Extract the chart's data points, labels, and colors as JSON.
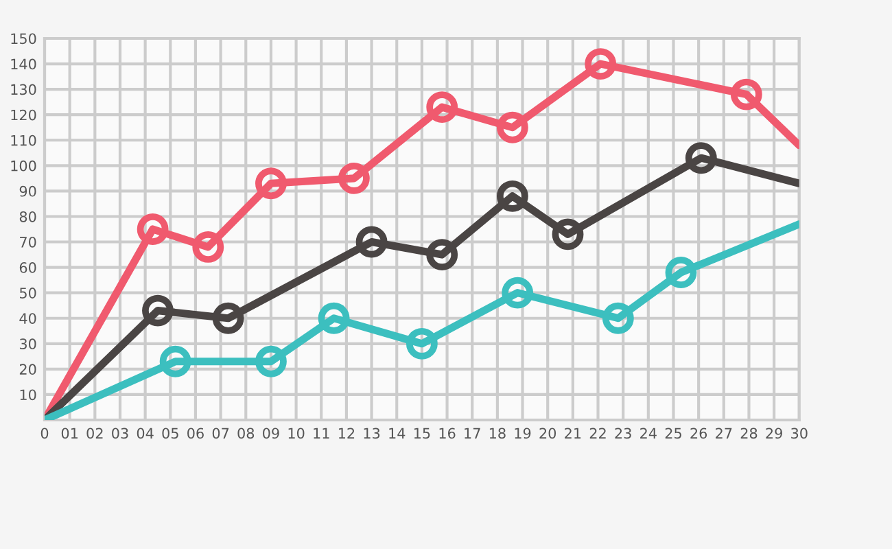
{
  "chart_data": {
    "type": "line",
    "marker": "circle",
    "grid": true,
    "legend": false,
    "xlim": [
      0,
      30
    ],
    "ylim": [
      0,
      150
    ],
    "xticks": [
      0,
      {
        "value": 1,
        "label": "01"
      },
      {
        "value": 2,
        "label": "02"
      },
      {
        "value": 3,
        "label": "03"
      },
      {
        "value": 4,
        "label": "04"
      },
      {
        "value": 5,
        "label": "05"
      },
      {
        "value": 6,
        "label": "06"
      },
      {
        "value": 7,
        "label": "07"
      },
      {
        "value": 8,
        "label": "08"
      },
      {
        "value": 9,
        "label": "09"
      },
      10,
      11,
      12,
      13,
      14,
      15,
      16,
      17,
      18,
      19,
      20,
      21,
      22,
      23,
      24,
      25,
      26,
      27,
      28,
      29,
      30
    ],
    "yticks": [
      {
        "value": 0,
        "label": null
      },
      10,
      20,
      30,
      40,
      50,
      60,
      70,
      80,
      90,
      100,
      110,
      120,
      130,
      140,
      150
    ],
    "series": [
      {
        "color": "#f05a6e",
        "x": [
          0,
          4.3,
          6.5,
          9.0,
          12.3,
          15.8,
          18.6,
          22.1,
          27.9,
          30
        ],
        "values": [
          0,
          75,
          68,
          93,
          95,
          123,
          115,
          140,
          128,
          108
        ]
      },
      {
        "color": "#4a4544",
        "x": [
          0,
          4.5,
          7.3,
          13.0,
          15.8,
          18.6,
          20.8,
          26.1,
          30
        ],
        "values": [
          0,
          43,
          40,
          70,
          65,
          88,
          73,
          103,
          93
        ]
      },
      {
        "color": "#3cbfbf",
        "x": [
          0,
          5.2,
          9.0,
          11.5,
          15.0,
          18.8,
          22.8,
          25.3,
          30
        ],
        "values": [
          0,
          23,
          23,
          40,
          30,
          50,
          40,
          58,
          77
        ]
      }
    ]
  }
}
